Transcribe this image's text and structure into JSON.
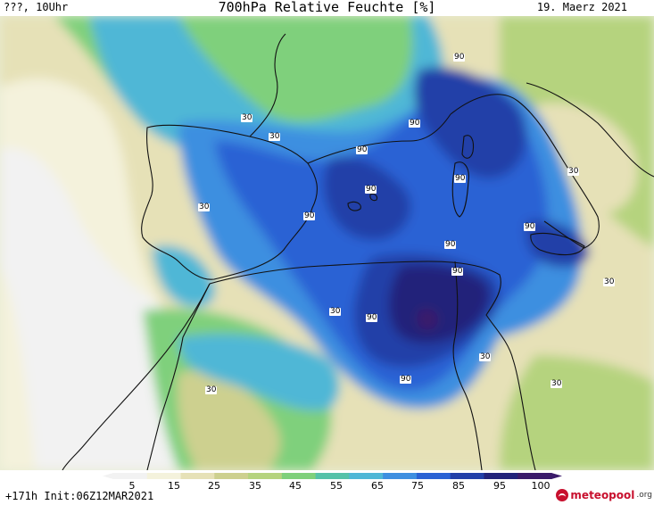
{
  "header": {
    "left_text": "???, 10Uhr",
    "title": "700hPa Relative Feuchte [%]",
    "date": "19. Maerz 2021"
  },
  "map": {
    "colors": {
      "very_dry": "#f2f2f2",
      "dry": "#f4f2dc",
      "tan": "#e6e1b7",
      "olive": "#cdd08f",
      "green_light": "#b5d37e",
      "green": "#7fd07b",
      "teal": "#55c2a8",
      "cyan": "#4fb7d6",
      "blue_light": "#3e8fe0",
      "blue": "#2a62d4",
      "blue_dark": "#2240a8",
      "navy": "#22237a",
      "purple": "#3a1a6a",
      "coast": "#111111"
    },
    "contour_labels": [
      "90",
      "30",
      "30",
      "90",
      "90",
      "90",
      "90",
      "90",
      "30",
      "90",
      "90",
      "30",
      "30",
      "90",
      "30",
      "90",
      "30",
      "30",
      "30",
      "90"
    ]
  },
  "legend": {
    "ticks": [
      "5",
      "15",
      "25",
      "35",
      "45",
      "55",
      "65",
      "75",
      "85",
      "95",
      "100"
    ],
    "colors": [
      "#f2f2f2",
      "#f4f2dc",
      "#e6e1b7",
      "#cdd08f",
      "#b5d37e",
      "#7fd07b",
      "#55c2a8",
      "#4fb7d6",
      "#3e8fe0",
      "#2a62d4",
      "#2240a8",
      "#22237a",
      "#3a1a6a"
    ],
    "init_text": "+171h Init:06Z12MAR2021",
    "logo_main": "meteopool",
    "logo_suffix": ".org"
  }
}
